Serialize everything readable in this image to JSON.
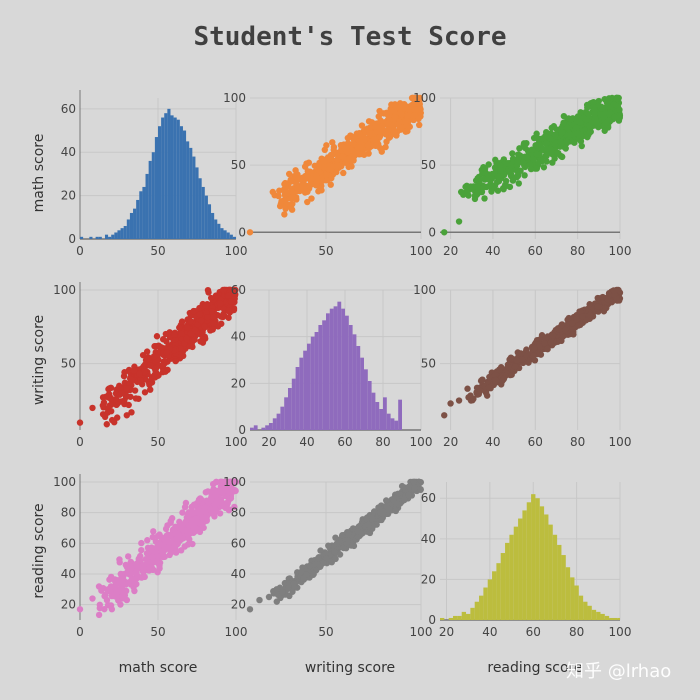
{
  "title": "Student's Test Score",
  "watermark": "知乎 @lrhao",
  "colors": {
    "background": "#d8d8d8",
    "grid": "#c7c7c7",
    "axis": "#777777",
    "math_writing": "#f0883a",
    "math_reading": "#4aa23a",
    "writing_math": "#c8332b",
    "writing_reading": "#7d5146",
    "reading_math": "#dc7ec6",
    "reading_writing": "#7f7f7f",
    "hist_math": "#3a72b0",
    "hist_writing": "#8f6bbd",
    "hist_reading": "#bcbd3e"
  },
  "chart_data": {
    "type": "scatter",
    "title": "Student's Test Score",
    "variables": [
      "math score",
      "writing score",
      "reading score"
    ],
    "xlabels": [
      "math score",
      "writing score",
      "reading score"
    ],
    "ylabels": [
      "math score",
      "writing score",
      "reading score"
    ],
    "panels": [
      {
        "row": 0,
        "col": 0,
        "kind": "histogram",
        "variable": "math score",
        "xlim": [
          0,
          100
        ],
        "ylim": [
          0,
          65
        ],
        "xticks": [
          0,
          50,
          100
        ],
        "yticks": [
          0,
          20,
          40,
          60
        ],
        "color": "hist_math",
        "bin_start": 0,
        "bin_width": 2,
        "counts": [
          1,
          0,
          0,
          1,
          0,
          1,
          1,
          0,
          2,
          1,
          2,
          3,
          4,
          5,
          6,
          9,
          12,
          14,
          18,
          22,
          24,
          30,
          36,
          40,
          47,
          52,
          56,
          58,
          60,
          57,
          56,
          55,
          52,
          50,
          45,
          42,
          38,
          33,
          28,
          24,
          20,
          16,
          12,
          9,
          7,
          5,
          4,
          3,
          2,
          1
        ]
      },
      {
        "row": 0,
        "col": 1,
        "kind": "scatter",
        "x": "writing score",
        "y": "math score",
        "xlim": [
          10,
          100
        ],
        "ylim": [
          -5,
          100
        ],
        "xticks": [
          50,
          100
        ],
        "yticks": [
          0,
          50,
          100
        ],
        "color": "math_writing",
        "slope": 0.95,
        "intercept": 0,
        "spread": 9,
        "seed": 11,
        "outliers": [
          [
            10,
            0
          ],
          [
            22,
            30
          ],
          [
            25,
            27
          ],
          [
            28,
            32
          ],
          [
            32,
            38
          ]
        ]
      },
      {
        "row": 0,
        "col": 2,
        "kind": "scatter",
        "x": "reading score",
        "y": "math score",
        "xlim": [
          15,
          100
        ],
        "ylim": [
          -5,
          100
        ],
        "xticks": [
          20,
          40,
          60,
          80,
          100
        ],
        "yticks": [
          0,
          50,
          100
        ],
        "color": "math_reading",
        "slope": 0.9,
        "intercept": 5,
        "spread": 9,
        "seed": 23,
        "outliers": [
          [
            17,
            0
          ],
          [
            24,
            8
          ],
          [
            25,
            30
          ],
          [
            26,
            28
          ],
          [
            30,
            33
          ]
        ]
      },
      {
        "row": 1,
        "col": 0,
        "kind": "scatter",
        "x": "math score",
        "y": "writing score",
        "xlim": [
          0,
          100
        ],
        "ylim": [
          5,
          100
        ],
        "xticks": [
          0,
          50,
          100
        ],
        "yticks": [
          50,
          100
        ],
        "color": "writing_math",
        "slope": 0.95,
        "intercept": 5,
        "spread": 9,
        "seed": 37,
        "outliers": [
          [
            0,
            10
          ],
          [
            8,
            20
          ],
          [
            18,
            28
          ],
          [
            30,
            15
          ],
          [
            33,
            17
          ]
        ]
      },
      {
        "row": 1,
        "col": 1,
        "kind": "histogram",
        "variable": "writing score",
        "xlim": [
          10,
          100
        ],
        "ylim": [
          0,
          60
        ],
        "xticks": [
          20,
          40,
          60,
          80,
          100
        ],
        "yticks": [
          0,
          20,
          40,
          60
        ],
        "color": "hist_writing",
        "bin_start": 10,
        "bin_width": 2,
        "counts": [
          1,
          2,
          0,
          1,
          2,
          3,
          5,
          7,
          10,
          14,
          18,
          22,
          27,
          31,
          34,
          37,
          40,
          42,
          45,
          47,
          50,
          52,
          53,
          55,
          52,
          49,
          45,
          41,
          36,
          31,
          26,
          21,
          16,
          12,
          9,
          14,
          7,
          5,
          4,
          13
        ]
      },
      {
        "row": 1,
        "col": 2,
        "kind": "scatter",
        "x": "reading score",
        "y": "writing score",
        "xlim": [
          15,
          100
        ],
        "ylim": [
          5,
          100
        ],
        "xticks": [
          20,
          40,
          60,
          80,
          100
        ],
        "yticks": [
          50,
          100
        ],
        "color": "writing_reading",
        "slope": 1.0,
        "intercept": -1,
        "spread": 4,
        "seed": 51,
        "outliers": [
          [
            17,
            15
          ],
          [
            20,
            23
          ],
          [
            24,
            25
          ],
          [
            28,
            33
          ]
        ]
      },
      {
        "row": 2,
        "col": 0,
        "kind": "scatter",
        "x": "math score",
        "y": "reading score",
        "xlim": [
          0,
          100
        ],
        "ylim": [
          10,
          100
        ],
        "xticks": [
          0,
          50,
          100
        ],
        "yticks": [
          20,
          40,
          60,
          80,
          100
        ],
        "color": "reading_math",
        "slope": 0.9,
        "intercept": 9,
        "spread": 9,
        "seed": 67,
        "outliers": [
          [
            0,
            17
          ],
          [
            8,
            24
          ],
          [
            18,
            30
          ],
          [
            27,
            25
          ],
          [
            30,
            23
          ]
        ]
      },
      {
        "row": 2,
        "col": 1,
        "kind": "scatter",
        "x": "writing score",
        "y": "reading score",
        "xlim": [
          10,
          100
        ],
        "ylim": [
          10,
          100
        ],
        "xticks": [
          50,
          100
        ],
        "yticks": [
          20,
          40,
          60,
          80,
          100
        ],
        "color": "reading_writing",
        "slope": 0.98,
        "intercept": 2,
        "spread": 4,
        "seed": 79,
        "outliers": [
          [
            10,
            17
          ],
          [
            15,
            23
          ],
          [
            20,
            25
          ],
          [
            24,
            30
          ]
        ]
      },
      {
        "row": 2,
        "col": 2,
        "kind": "histogram",
        "variable": "reading score",
        "xlim": [
          17,
          100
        ],
        "ylim": [
          0,
          68
        ],
        "xticks": [
          20,
          40,
          60,
          80,
          100
        ],
        "yticks": [
          0,
          20,
          40,
          60
        ],
        "color": "hist_reading",
        "bin_start": 17,
        "bin_width": 2,
        "counts": [
          1,
          0,
          1,
          2,
          2,
          4,
          3,
          6,
          9,
          12,
          16,
          20,
          24,
          28,
          33,
          38,
          42,
          46,
          50,
          54,
          58,
          62,
          60,
          56,
          52,
          47,
          42,
          37,
          32,
          26,
          21,
          17,
          12,
          9,
          7,
          5,
          4,
          3,
          2,
          1,
          1,
          1
        ]
      }
    ]
  }
}
